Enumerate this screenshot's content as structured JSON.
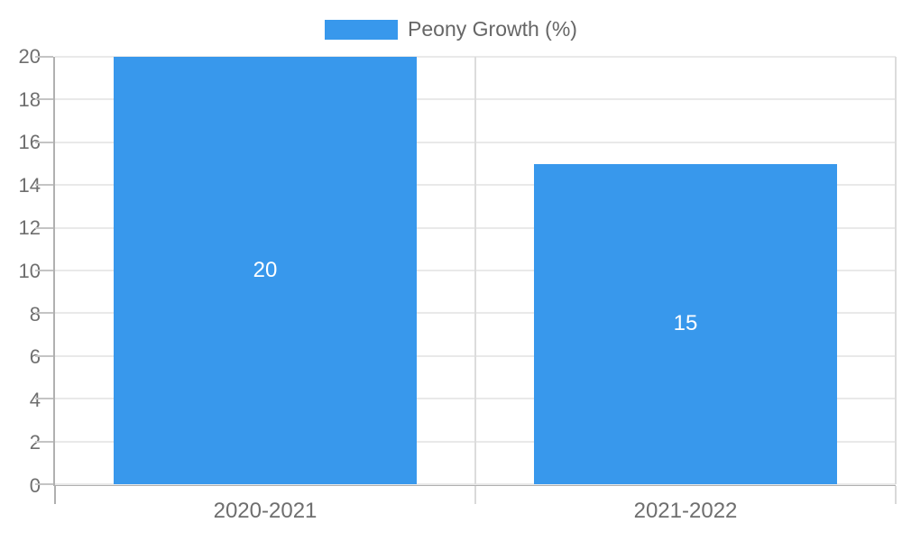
{
  "chart_data": {
    "type": "bar",
    "categories": [
      "2020-2021",
      "2021-2022"
    ],
    "series": [
      {
        "name": "Peony Growth (%)",
        "values": [
          20,
          15
        ],
        "color": "#3898ec"
      }
    ],
    "data_labels": [
      "20",
      "15"
    ],
    "ylim": [
      0,
      20
    ],
    "yticks": [
      0,
      2,
      4,
      6,
      8,
      10,
      12,
      14,
      16,
      18,
      20
    ],
    "grid": true,
    "legend_position": "top",
    "colors": {
      "bar": "#3898ec",
      "grid_horizontal": "#e9e9e9",
      "grid_vertical": "#dcdcdc",
      "axis_line": "#b0b0b0",
      "tick_label": "#6e6e6e",
      "legend_text": "#666666",
      "data_label": "#ffffff",
      "background": "#ffffff"
    }
  }
}
